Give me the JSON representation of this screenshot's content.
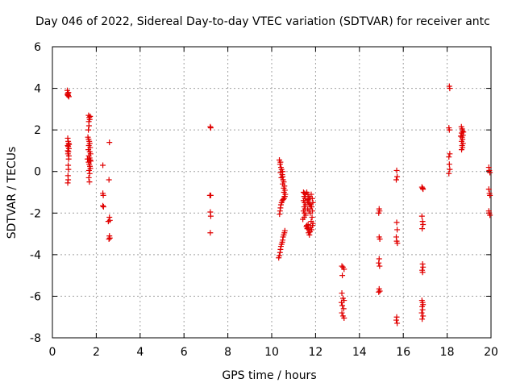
{
  "chart_data": {
    "type": "scatter",
    "title": "Day 046 of 2022, Sidereal Day-to-day VTEC variation (SDTVAR) for receiver antc",
    "xlabel": "GPS time / hours",
    "ylabel": "SDTVAR / TECUs",
    "xlim": [
      0,
      20
    ],
    "ylim": [
      -8,
      6
    ],
    "xticks": [
      "0",
      "2",
      "4",
      "6",
      "8",
      "10",
      "12",
      "14",
      "16",
      "18",
      "20"
    ],
    "yticks": [
      "-8",
      "-6",
      "-4",
      "-2",
      "0",
      "2",
      "4",
      "6"
    ],
    "grid": true,
    "marker": "plus",
    "color": "#e00000",
    "points": [
      [
        0.68,
        3.9
      ],
      [
        0.7,
        3.75
      ],
      [
        0.72,
        3.65
      ],
      [
        0.75,
        3.6
      ],
      [
        0.7,
        3.7
      ],
      [
        0.73,
        3.8
      ],
      [
        0.69,
        3.68
      ],
      [
        0.7,
        1.6
      ],
      [
        0.72,
        1.45
      ],
      [
        0.74,
        1.35
      ],
      [
        0.7,
        1.25
      ],
      [
        0.75,
        1.1
      ],
      [
        0.7,
        1.0
      ],
      [
        0.73,
        0.95
      ],
      [
        0.71,
        0.85
      ],
      [
        0.76,
        1.3
      ],
      [
        0.72,
        1.2
      ],
      [
        0.74,
        0.6
      ],
      [
        0.72,
        0.3
      ],
      [
        0.73,
        0.1
      ],
      [
        0.71,
        -0.2
      ],
      [
        0.72,
        -0.4
      ],
      [
        0.7,
        -0.55
      ],
      [
        0.75,
        0.75
      ],
      [
        1.65,
        2.7
      ],
      [
        1.68,
        2.6
      ],
      [
        1.7,
        2.5
      ],
      [
        1.66,
        2.4
      ],
      [
        1.72,
        2.65
      ],
      [
        1.67,
        2.2
      ],
      [
        1.64,
        2.0
      ],
      [
        1.62,
        1.65
      ],
      [
        1.65,
        1.55
      ],
      [
        1.68,
        1.45
      ],
      [
        1.7,
        1.35
      ],
      [
        1.66,
        1.25
      ],
      [
        1.72,
        1.15
      ],
      [
        1.64,
        1.05
      ],
      [
        1.7,
        0.95
      ],
      [
        1.74,
        0.85
      ],
      [
        1.66,
        0.75
      ],
      [
        1.7,
        0.65
      ],
      [
        1.72,
        0.55
      ],
      [
        1.65,
        0.45
      ],
      [
        1.68,
        0.35
      ],
      [
        1.71,
        0.25
      ],
      [
        1.73,
        0.15
      ],
      [
        1.67,
        0.05
      ],
      [
        1.7,
        -0.1
      ],
      [
        1.66,
        -0.3
      ],
      [
        1.69,
        -0.5
      ],
      [
        1.75,
        0.5
      ],
      [
        1.6,
        0.6
      ],
      [
        2.3,
        0.3
      ],
      [
        2.3,
        -1.05
      ],
      [
        2.32,
        -1.15
      ],
      [
        2.3,
        -1.65
      ],
      [
        2.33,
        -1.7
      ],
      [
        2.6,
        1.4
      ],
      [
        2.58,
        -0.4
      ],
      [
        2.6,
        -2.2
      ],
      [
        2.62,
        -2.35
      ],
      [
        2.55,
        -2.4
      ],
      [
        2.6,
        -3.1
      ],
      [
        2.62,
        -3.2
      ],
      [
        2.58,
        -3.25
      ],
      [
        7.2,
        2.15
      ],
      [
        7.22,
        2.1
      ],
      [
        7.18,
        -1.15
      ],
      [
        7.22,
        -1.15
      ],
      [
        7.2,
        -1.95
      ],
      [
        7.22,
        -2.15
      ],
      [
        7.2,
        -2.95
      ],
      [
        10.35,
        0.55
      ],
      [
        10.4,
        0.45
      ],
      [
        10.38,
        0.35
      ],
      [
        10.42,
        0.2
      ],
      [
        10.45,
        0.1
      ],
      [
        10.4,
        -0.05
      ],
      [
        10.5,
        0.0
      ],
      [
        10.48,
        -0.15
      ],
      [
        10.44,
        -0.3
      ],
      [
        10.5,
        -0.25
      ],
      [
        10.52,
        -0.4
      ],
      [
        10.55,
        -0.5
      ],
      [
        10.5,
        -0.6
      ],
      [
        10.58,
        -0.7
      ],
      [
        10.55,
        -0.8
      ],
      [
        10.6,
        -0.9
      ],
      [
        10.56,
        -1.0
      ],
      [
        10.62,
        -1.1
      ],
      [
        10.6,
        -1.2
      ],
      [
        10.56,
        -1.3
      ],
      [
        10.52,
        -1.35
      ],
      [
        10.48,
        -1.4
      ],
      [
        10.45,
        -1.5
      ],
      [
        10.42,
        -1.6
      ],
      [
        10.4,
        -1.75
      ],
      [
        10.38,
        -1.9
      ],
      [
        10.36,
        -2.05
      ],
      [
        10.58,
        -1.2
      ],
      [
        10.6,
        -2.85
      ],
      [
        10.58,
        -2.95
      ],
      [
        10.55,
        -3.05
      ],
      [
        10.52,
        -3.15
      ],
      [
        10.5,
        -3.3
      ],
      [
        10.48,
        -3.4
      ],
      [
        10.45,
        -3.5
      ],
      [
        10.42,
        -3.6
      ],
      [
        10.4,
        -3.75
      ],
      [
        10.38,
        -3.9
      ],
      [
        10.35,
        -4.05
      ],
      [
        10.32,
        -4.15
      ],
      [
        11.45,
        -1.0
      ],
      [
        11.5,
        -1.05
      ],
      [
        11.55,
        -1.1
      ],
      [
        11.48,
        -1.2
      ],
      [
        11.52,
        -1.3
      ],
      [
        11.45,
        -1.4
      ],
      [
        11.5,
        -1.5
      ],
      [
        11.55,
        -1.6
      ],
      [
        11.48,
        -1.7
      ],
      [
        11.52,
        -1.8
      ],
      [
        11.45,
        -1.9
      ],
      [
        11.5,
        -2.0
      ],
      [
        11.55,
        -2.1
      ],
      [
        11.48,
        -2.2
      ],
      [
        11.42,
        -2.3
      ],
      [
        11.6,
        -1.0
      ],
      [
        11.65,
        -1.1
      ],
      [
        11.7,
        -1.2
      ],
      [
        11.75,
        -1.3
      ],
      [
        11.62,
        -1.4
      ],
      [
        11.68,
        -1.5
      ],
      [
        11.72,
        -1.6
      ],
      [
        11.78,
        -1.7
      ],
      [
        11.64,
        -1.8
      ],
      [
        11.7,
        -1.9
      ],
      [
        11.76,
        -2.0
      ],
      [
        11.66,
        -1.35
      ],
      [
        11.74,
        -1.55
      ],
      [
        11.8,
        -1.1
      ],
      [
        11.85,
        -1.3
      ],
      [
        11.88,
        -1.5
      ],
      [
        11.82,
        -1.7
      ],
      [
        11.86,
        -1.9
      ],
      [
        11.84,
        -2.2
      ],
      [
        11.8,
        -2.4
      ],
      [
        11.86,
        -2.6
      ],
      [
        11.82,
        -2.8
      ],
      [
        11.88,
        -2.5
      ],
      [
        11.6,
        -2.6
      ],
      [
        11.65,
        -2.7
      ],
      [
        11.7,
        -2.8
      ],
      [
        11.75,
        -2.9
      ],
      [
        11.62,
        -2.75
      ],
      [
        11.68,
        -2.95
      ],
      [
        11.72,
        -3.05
      ],
      [
        11.58,
        -2.65
      ],
      [
        11.78,
        -2.7
      ],
      [
        11.66,
        -2.55
      ],
      [
        13.2,
        -4.55
      ],
      [
        13.25,
        -4.6
      ],
      [
        13.3,
        -4.7
      ],
      [
        13.22,
        -5.0
      ],
      [
        13.2,
        -5.85
      ],
      [
        13.25,
        -6.1
      ],
      [
        13.3,
        -6.2
      ],
      [
        13.18,
        -6.3
      ],
      [
        13.22,
        -6.45
      ],
      [
        13.28,
        -6.6
      ],
      [
        13.2,
        -6.8
      ],
      [
        13.25,
        -6.95
      ],
      [
        13.3,
        -7.05
      ],
      [
        14.9,
        -1.8
      ],
      [
        14.92,
        -1.9
      ],
      [
        14.88,
        -2.0
      ],
      [
        14.9,
        -3.15
      ],
      [
        14.93,
        -3.25
      ],
      [
        14.9,
        -4.2
      ],
      [
        14.88,
        -4.4
      ],
      [
        14.92,
        -4.55
      ],
      [
        14.9,
        -5.65
      ],
      [
        14.93,
        -5.75
      ],
      [
        14.88,
        -5.8
      ],
      [
        15.7,
        0.05
      ],
      [
        15.72,
        -0.25
      ],
      [
        15.68,
        -0.4
      ],
      [
        15.7,
        -2.45
      ],
      [
        15.72,
        -2.8
      ],
      [
        15.68,
        -3.15
      ],
      [
        15.7,
        -3.35
      ],
      [
        15.73,
        -3.45
      ],
      [
        15.7,
        -7.0
      ],
      [
        15.68,
        -7.15
      ],
      [
        15.72,
        -7.3
      ],
      [
        16.85,
        -0.75
      ],
      [
        16.88,
        -0.8
      ],
      [
        16.9,
        -0.85
      ],
      [
        16.85,
        -2.15
      ],
      [
        16.88,
        -2.4
      ],
      [
        16.9,
        -2.55
      ],
      [
        16.86,
        -2.75
      ],
      [
        16.88,
        -4.45
      ],
      [
        16.9,
        -4.6
      ],
      [
        16.86,
        -4.75
      ],
      [
        16.88,
        -4.85
      ],
      [
        16.85,
        -6.2
      ],
      [
        16.88,
        -6.3
      ],
      [
        16.9,
        -6.4
      ],
      [
        16.86,
        -6.5
      ],
      [
        16.88,
        -6.65
      ],
      [
        16.84,
        -6.8
      ],
      [
        16.9,
        -6.95
      ],
      [
        16.86,
        -7.1
      ],
      [
        18.1,
        4.1
      ],
      [
        18.12,
        4.0
      ],
      [
        18.08,
        2.1
      ],
      [
        18.1,
        2.0
      ],
      [
        18.12,
        0.85
      ],
      [
        18.08,
        0.7
      ],
      [
        18.1,
        0.35
      ],
      [
        18.12,
        0.1
      ],
      [
        18.08,
        -0.1
      ],
      [
        18.65,
        2.15
      ],
      [
        18.68,
        2.05
      ],
      [
        18.7,
        1.95
      ],
      [
        18.66,
        1.85
      ],
      [
        18.72,
        1.75
      ],
      [
        18.68,
        1.65
      ],
      [
        18.7,
        1.55
      ],
      [
        18.66,
        1.45
      ],
      [
        18.72,
        1.35
      ],
      [
        18.68,
        1.25
      ],
      [
        18.7,
        1.15
      ],
      [
        18.66,
        1.05
      ],
      [
        18.74,
        1.9
      ],
      [
        18.62,
        1.7
      ],
      [
        19.9,
        0.2
      ],
      [
        19.92,
        0.05
      ],
      [
        19.95,
        -0.05
      ],
      [
        19.9,
        -0.85
      ],
      [
        19.93,
        -1.05
      ],
      [
        19.95,
        -1.15
      ],
      [
        19.9,
        -1.9
      ],
      [
        19.92,
        -2.0
      ],
      [
        19.95,
        -2.1
      ]
    ]
  }
}
